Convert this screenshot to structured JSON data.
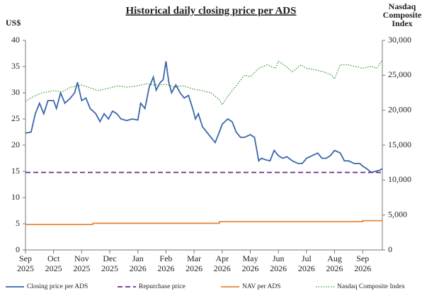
{
  "chart_data": {
    "type": "line",
    "title": "Historical daily closing price per ADS",
    "y_label": "US$",
    "y2_label": "Nasdaq Composite Index",
    "xlim": [
      0,
      12.7
    ],
    "xticks": [
      {
        "value": 0,
        "label": "Sep 2025"
      },
      {
        "value": 1,
        "label": "Oct 2025"
      },
      {
        "value": 2,
        "label": "Nov 2025"
      },
      {
        "value": 3,
        "label": "Dec 2025"
      },
      {
        "value": 4,
        "label": "Jan 2026"
      },
      {
        "value": 5,
        "label": "Feb 2026"
      },
      {
        "value": 6,
        "label": "Mar 2026"
      },
      {
        "value": 7,
        "label": "Apr 2026"
      },
      {
        "value": 8,
        "label": "May 2026"
      },
      {
        "value": 9,
        "label": "Jun 2026"
      },
      {
        "value": 10,
        "label": "Jul 2026"
      },
      {
        "value": 11,
        "label": "Aug 2026"
      },
      {
        "value": 12,
        "label": "Sep 2026"
      }
    ],
    "ylim": [
      0,
      40
    ],
    "yticks": [
      0,
      5,
      10,
      15,
      20,
      25,
      30,
      35,
      40
    ],
    "y2lim": [
      0,
      30000
    ],
    "y2ticks": [
      0,
      {
        "value": 5000,
        "label": "5,000"
      },
      {
        "value": 10000,
        "label": "10,000"
      },
      {
        "value": 15000,
        "label": "15,000"
      },
      {
        "value": 20000,
        "label": "20,000"
      },
      {
        "value": 25000,
        "label": "25,000"
      },
      {
        "value": 30000,
        "label": "30,000"
      }
    ],
    "series": [
      {
        "name": "Closing price per ADS",
        "color": "#3a66ab",
        "line_style": "solid",
        "x": [
          0,
          0.2,
          0.35,
          0.5,
          0.65,
          0.8,
          1.0,
          1.1,
          1.25,
          1.4,
          1.6,
          1.75,
          1.85,
          2.0,
          2.15,
          2.3,
          2.5,
          2.65,
          2.8,
          2.95,
          3.1,
          3.25,
          3.4,
          3.6,
          3.8,
          4.0,
          4.1,
          4.25,
          4.4,
          4.55,
          4.65,
          4.8,
          4.9,
          5.0,
          5.1,
          5.2,
          5.35,
          5.5,
          5.65,
          5.8,
          5.95,
          6.05,
          6.15,
          6.3,
          6.45,
          6.6,
          6.75,
          6.9,
          7.0,
          7.2,
          7.35,
          7.5,
          7.65,
          7.8,
          8.0,
          8.15,
          8.3,
          8.4,
          8.55,
          8.7,
          8.85,
          9.0,
          9.15,
          9.3,
          9.5,
          9.7,
          9.85,
          10.0,
          10.2,
          10.4,
          10.55,
          10.7,
          10.85,
          11.0,
          11.2,
          11.35,
          11.5,
          11.7,
          11.9,
          12.0,
          12.15,
          12.3,
          12.45,
          12.6,
          12.7
        ],
        "values": [
          22.3,
          22.5,
          26,
          28,
          26,
          28.5,
          28.5,
          27,
          30,
          28,
          29,
          30,
          32,
          28.5,
          29,
          27,
          26,
          24.5,
          26,
          25,
          26.5,
          26,
          25,
          24.7,
          25,
          24.8,
          28,
          27,
          31,
          33,
          30.5,
          32,
          32.5,
          36,
          32,
          30,
          31.5,
          30,
          29,
          29.5,
          27,
          25,
          26,
          23.5,
          22.5,
          21.5,
          20.5,
          22.5,
          24,
          25,
          24.5,
          22.5,
          21.5,
          21.5,
          22,
          21.5,
          17,
          17.5,
          17.2,
          17,
          19,
          18,
          17.5,
          17.8,
          17,
          16.5,
          16.5,
          17.5,
          18,
          18.5,
          17.5,
          17.5,
          18,
          19,
          18.5,
          17,
          17,
          16.5,
          16.5,
          16,
          15.5,
          14.8,
          15,
          15.2,
          15.5
        ]
      },
      {
        "name": "Repurchase price",
        "color": "#6a2c8c",
        "line_style": "dashed",
        "x": [
          0,
          12.7
        ],
        "values": [
          14.8,
          14.8
        ]
      },
      {
        "name": "NAV per ADS",
        "color": "#e8873a",
        "line_style": "solid",
        "x": [
          0,
          2.4,
          2.4,
          6.9,
          6.9,
          12.0,
          12.0,
          12.7
        ],
        "values": [
          4.86,
          4.86,
          5.1,
          5.1,
          5.4,
          5.4,
          5.6,
          5.6
        ]
      },
      {
        "name": "Nasdaq Composite Index",
        "color": "#3a9a3a",
        "line_style": "dotted",
        "axis": "y2",
        "x": [
          0,
          0.3,
          0.6,
          1.0,
          1.3,
          1.6,
          2.0,
          2.3,
          2.6,
          3.0,
          3.3,
          3.6,
          4.0,
          4.3,
          4.6,
          5.0,
          5.3,
          5.6,
          6.0,
          6.3,
          6.6,
          6.9,
          7.0,
          7.2,
          7.5,
          7.8,
          8.0,
          8.3,
          8.6,
          8.9,
          9.0,
          9.2,
          9.5,
          9.8,
          10.0,
          10.3,
          10.6,
          10.9,
          11.0,
          11.2,
          11.5,
          11.8,
          12.0,
          12.3,
          12.5,
          12.7
        ],
        "values": [
          21300,
          22000,
          22500,
          22800,
          22600,
          23300,
          23600,
          23200,
          22800,
          23200,
          23500,
          23300,
          23500,
          23800,
          23600,
          23700,
          23300,
          23500,
          23000,
          22800,
          22500,
          21500,
          20800,
          22000,
          23500,
          25000,
          24800,
          26000,
          26500,
          26000,
          27000,
          26500,
          25500,
          26500,
          26000,
          25800,
          25500,
          25000,
          24500,
          26500,
          26500,
          26200,
          26000,
          26300,
          26000,
          27200
        ]
      }
    ]
  }
}
